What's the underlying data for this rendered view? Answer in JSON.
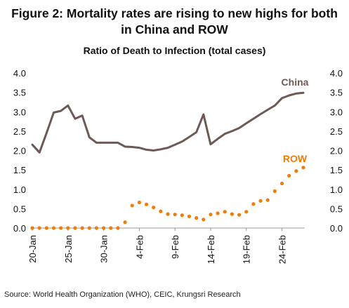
{
  "figure": {
    "title_line1": "Figure 2: Mortality rates are rising to new highs for both",
    "title_line2": "in China and ROW",
    "source": "Source: World Health Organization (WHO), CEIC, Krungsri Research"
  },
  "chart_data": {
    "type": "line",
    "title": "Ratio of Death to Infection (total cases)",
    "x": [
      "20-Jan",
      "21-Jan",
      "22-Jan",
      "23-Jan",
      "24-Jan",
      "25-Jan",
      "26-Jan",
      "27-Jan",
      "28-Jan",
      "29-Jan",
      "30-Jan",
      "31-Jan",
      "1-Feb",
      "2-Feb",
      "3-Feb",
      "4-Feb",
      "5-Feb",
      "6-Feb",
      "7-Feb",
      "8-Feb",
      "9-Feb",
      "10-Feb",
      "11-Feb",
      "12-Feb",
      "13-Feb",
      "14-Feb",
      "15-Feb",
      "16-Feb",
      "17-Feb",
      "18-Feb",
      "19-Feb",
      "20-Feb",
      "21-Feb",
      "22-Feb",
      "23-Feb",
      "24-Feb",
      "25-Feb",
      "26-Feb",
      "27-Feb"
    ],
    "xticks": [
      "20-Jan",
      "25-Jan",
      "30-Jan",
      "4-Feb",
      "9-Feb",
      "14-Feb",
      "19-Feb",
      "24-Feb"
    ],
    "ylim": [
      0,
      4.0
    ],
    "yticks": [
      "0.0",
      "0.5",
      "1.0",
      "1.5",
      "2.0",
      "2.5",
      "3.0",
      "3.5",
      "4.0"
    ],
    "series": [
      {
        "name": "China",
        "color": "#6d5a55",
        "style": "solid",
        "values": [
          2.15,
          1.95,
          2.45,
          2.98,
          3.02,
          3.16,
          2.82,
          2.9,
          2.34,
          2.2,
          2.2,
          2.2,
          2.2,
          2.1,
          2.09,
          2.07,
          2.02,
          2.0,
          2.03,
          2.07,
          2.15,
          2.23,
          2.35,
          2.47,
          2.93,
          2.16,
          2.3,
          2.43,
          2.5,
          2.58,
          2.7,
          2.82,
          2.94,
          3.05,
          3.16,
          3.35,
          3.42,
          3.47,
          3.49
        ]
      },
      {
        "name": "ROW",
        "color": "#f07c0a",
        "style": "dotted",
        "values": [
          0.0,
          0.0,
          0.0,
          0.0,
          0.0,
          0.0,
          0.0,
          0.0,
          0.0,
          0.0,
          0.0,
          0.0,
          0.0,
          0.15,
          0.58,
          0.66,
          0.61,
          0.53,
          0.43,
          0.36,
          0.35,
          0.33,
          0.3,
          0.26,
          0.22,
          0.35,
          0.38,
          0.42,
          0.36,
          0.34,
          0.42,
          0.62,
          0.7,
          0.72,
          0.95,
          1.15,
          1.35,
          1.47,
          1.56
        ]
      }
    ]
  }
}
